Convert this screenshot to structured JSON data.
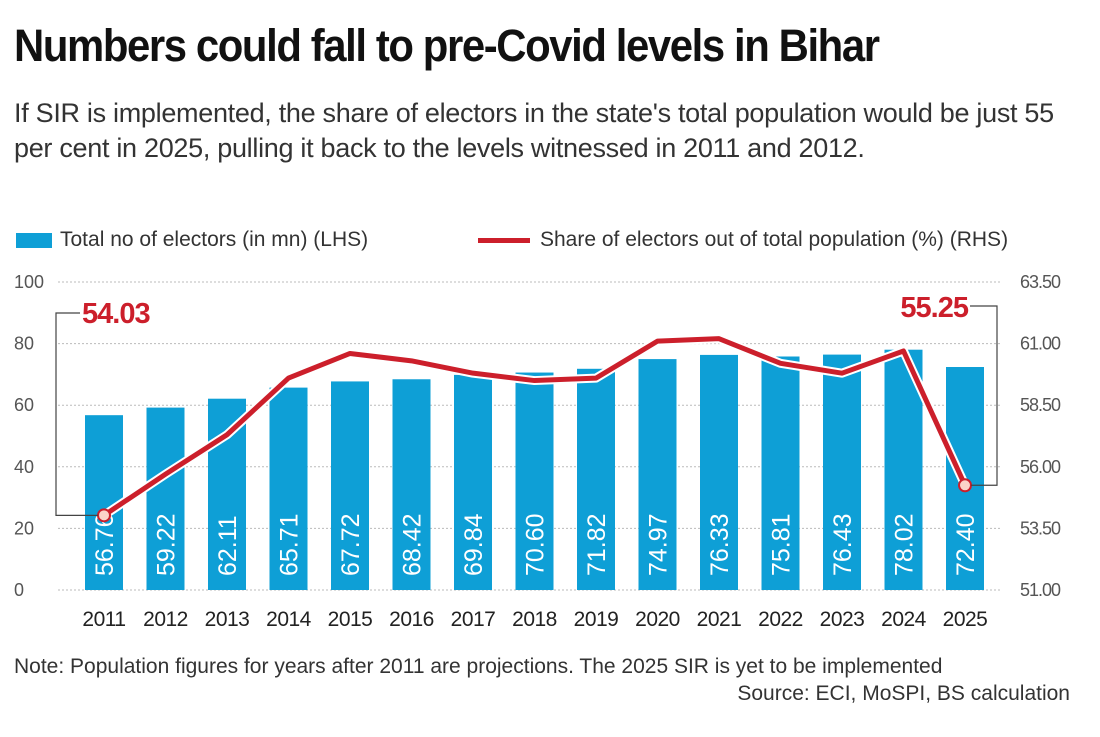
{
  "chart_data": {
    "type": "bar+line",
    "title": "Numbers could fall to pre-Covid levels in Bihar",
    "subtitle": "If SIR is implemented, the share of electors in the state's total population would be just 55 per cent in 2025, pulling it back to the levels witnessed in 2011 and 2012.",
    "categories": [
      "2011",
      "2012",
      "2013",
      "2014",
      "2015",
      "2016",
      "2017",
      "2018",
      "2019",
      "2020",
      "2021",
      "2022",
      "2023",
      "2024",
      "2025"
    ],
    "series": [
      {
        "name": "Total no of electors (in mn) (LHS)",
        "type": "bar",
        "axis": "left",
        "color": "#0e9fd6",
        "values": [
          56.76,
          59.22,
          62.11,
          65.71,
          67.72,
          68.42,
          69.84,
          70.6,
          71.82,
          74.97,
          76.33,
          75.81,
          76.43,
          78.02,
          72.4
        ],
        "labels": [
          "56.76",
          "59.22",
          "62.11",
          "65.71",
          "67.72",
          "68.42",
          "69.84",
          "70.60",
          "71.82",
          "74.97",
          "76.33",
          "75.81",
          "76.43",
          "78.02",
          "72.40"
        ]
      },
      {
        "name": "Share of electors out of total population (%) (RHS)",
        "type": "line",
        "axis": "right",
        "color": "#cc1f2b",
        "values": [
          54.03,
          55.7,
          57.3,
          59.6,
          60.6,
          60.3,
          59.8,
          59.5,
          59.6,
          61.1,
          61.2,
          60.2,
          59.8,
          60.7,
          55.25
        ]
      }
    ],
    "annotations": [
      {
        "category": "2011",
        "text": "54.03"
      },
      {
        "category": "2025",
        "text": "55.25"
      }
    ],
    "left_axis": {
      "ylim": [
        0,
        100
      ],
      "ticks": [
        "0",
        "20",
        "40",
        "60",
        "80",
        "100"
      ]
    },
    "right_axis": {
      "ylim": [
        51,
        63.5
      ],
      "ticks": [
        "51.00",
        "53.50",
        "56.00",
        "58.50",
        "61.00",
        "63.50"
      ]
    },
    "grid": true,
    "legend_position": "top",
    "note": "Note: Population figures for years after 2011 are projections. The 2025 SIR is yet to be implemented",
    "source": "Source: ECI, MoSPI, BS calculation"
  }
}
